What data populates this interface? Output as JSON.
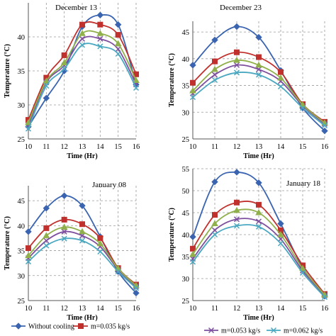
{
  "chart_data": [
    {
      "type": "line",
      "title": "December 13",
      "xlabel": "Time (Hr)",
      "ylabel": "Temperature (°C)",
      "x": [
        10,
        11,
        12,
        13,
        14,
        15,
        16
      ],
      "xlim": [
        10,
        16
      ],
      "ylim": [
        25,
        45
      ],
      "yticks": [
        25,
        30,
        35,
        40
      ],
      "grid": true,
      "series": [
        {
          "name": "Without cooling",
          "color": "#3a64b0",
          "marker": "diamond",
          "values": [
            26.8,
            31.0,
            35.0,
            41.5,
            43.2,
            41.8,
            33.0
          ]
        },
        {
          "name": "m=0.035 kg/s",
          "color": "#c0312d",
          "marker": "square",
          "values": [
            27.8,
            34.0,
            37.3,
            41.8,
            41.8,
            40.3,
            34.5
          ]
        },
        {
          "name": "m=0.053 kg/s",
          "color": "#7d4f9e",
          "marker": "x",
          "values": [
            27.0,
            33.3,
            35.8,
            39.7,
            39.7,
            38.2,
            33.0
          ]
        },
        {
          "name": "",
          "color": "#8fb04a",
          "marker": "triangle",
          "values": [
            27.4,
            33.5,
            36.2,
            40.5,
            40.5,
            39.0,
            33.6
          ]
        },
        {
          "name": "m=0.062 kg/s",
          "color": "#4aa8c0",
          "marker": "x",
          "values": [
            26.5,
            32.8,
            35.3,
            38.8,
            38.6,
            37.5,
            32.5
          ]
        }
      ]
    },
    {
      "type": "line",
      "title": "December 23",
      "xlabel": "Time (Hr)",
      "ylabel": "Temperature (°C)",
      "x": [
        10,
        11,
        12,
        13,
        14,
        15,
        16
      ],
      "xlim": [
        10,
        16
      ],
      "ylim": [
        25,
        47
      ],
      "yticks": [
        25,
        30,
        35,
        40,
        45
      ],
      "grid": true,
      "series": [
        {
          "name": "Without cooling",
          "color": "#3a64b0",
          "marker": "diamond",
          "values": [
            38.8,
            43.5,
            46.0,
            44.0,
            37.8,
            30.8,
            26.5
          ]
        },
        {
          "name": "m=0.035 kg/s",
          "color": "#c0312d",
          "marker": "square",
          "values": [
            35.5,
            39.5,
            41.2,
            40.3,
            37.5,
            31.5,
            28.2
          ]
        },
        {
          "name": "m=0.053 kg/s",
          "color": "#7d4f9e",
          "marker": "x",
          "values": [
            33.5,
            37.0,
            38.8,
            38.0,
            35.8,
            31.2,
            27.8
          ]
        },
        {
          "name": "",
          "color": "#8fb04a",
          "marker": "triangle",
          "values": [
            34.0,
            38.0,
            39.7,
            38.8,
            36.4,
            31.4,
            28.0
          ]
        },
        {
          "name": "m=0.062 kg/s",
          "color": "#4aa8c0",
          "marker": "x",
          "values": [
            32.8,
            36.0,
            37.4,
            37.0,
            34.8,
            30.8,
            27.5
          ]
        }
      ]
    },
    {
      "type": "line",
      "title": "January 08",
      "xlabel": "Time (Hr)",
      "ylabel": "Temperature (°C)",
      "x": [
        10,
        11,
        12,
        13,
        14,
        15,
        16
      ],
      "xlim": [
        10,
        16
      ],
      "ylim": [
        25,
        48
      ],
      "yticks": [
        25,
        30,
        35,
        40,
        45
      ],
      "grid": true,
      "series": [
        {
          "name": "Without cooling",
          "color": "#3a64b0",
          "marker": "diamond",
          "values": [
            38.8,
            43.5,
            46.0,
            44.0,
            37.8,
            30.8,
            26.5
          ]
        },
        {
          "name": "m=0.035 kg/s",
          "color": "#c0312d",
          "marker": "square",
          "values": [
            35.5,
            39.5,
            41.2,
            40.3,
            37.5,
            31.5,
            28.2
          ]
        },
        {
          "name": "m=0.053 kg/s",
          "color": "#7d4f9e",
          "marker": "x",
          "values": [
            33.5,
            37.0,
            38.8,
            38.0,
            35.8,
            31.2,
            27.8
          ]
        },
        {
          "name": "",
          "color": "#8fb04a",
          "marker": "triangle",
          "values": [
            34.0,
            38.0,
            39.7,
            38.8,
            36.4,
            31.4,
            28.0
          ]
        },
        {
          "name": "m=0.062 kg/s",
          "color": "#4aa8c0",
          "marker": "x",
          "values": [
            32.8,
            36.0,
            37.4,
            37.0,
            34.8,
            30.8,
            27.5
          ]
        }
      ]
    },
    {
      "type": "line",
      "title": "January 18",
      "xlabel": "Time (Hr)",
      "ylabel": "Temperature (°C)",
      "x": [
        10,
        11,
        12,
        13,
        14,
        15,
        16
      ],
      "xlim": [
        10,
        16
      ],
      "ylim": [
        25,
        55
      ],
      "yticks": [
        25,
        30,
        35,
        40,
        45,
        50,
        55
      ],
      "grid": true,
      "series": [
        {
          "name": "Without cooling",
          "color": "#3a64b0",
          "marker": "diamond",
          "values": [
            39.5,
            52.0,
            54.2,
            51.8,
            42.5,
            32.5,
            26.0
          ]
        },
        {
          "name": "m=0.035 kg/s",
          "color": "#c0312d",
          "marker": "square",
          "values": [
            36.8,
            44.5,
            47.3,
            46.8,
            41.0,
            33.0,
            26.5
          ]
        },
        {
          "name": "m=0.053 kg/s",
          "color": "#7d4f9e",
          "marker": "x",
          "values": [
            34.5,
            41.0,
            43.5,
            43.0,
            39.0,
            31.8,
            26.2
          ]
        },
        {
          "name": "",
          "color": "#8fb04a",
          "marker": "triangle",
          "values": [
            35.5,
            42.5,
            45.5,
            45.0,
            40.0,
            32.3,
            26.3
          ]
        },
        {
          "name": "m=0.062 kg/s",
          "color": "#4aa8c0",
          "marker": "x",
          "values": [
            33.8,
            40.0,
            42.0,
            41.8,
            38.0,
            31.3,
            25.8
          ]
        }
      ]
    }
  ],
  "legend": {
    "entries": [
      {
        "label": "Without cooling",
        "color": "#3a64b0",
        "marker": "diamond"
      },
      {
        "label": "m=0.035 kg/s",
        "color": "#c0312d",
        "marker": "square"
      },
      {
        "label": "m=0.053 kg/s",
        "color": "#7d4f9e",
        "marker": "x"
      },
      {
        "label": "m=0.062 kg/s",
        "color": "#4aa8c0",
        "marker": "x"
      }
    ]
  }
}
